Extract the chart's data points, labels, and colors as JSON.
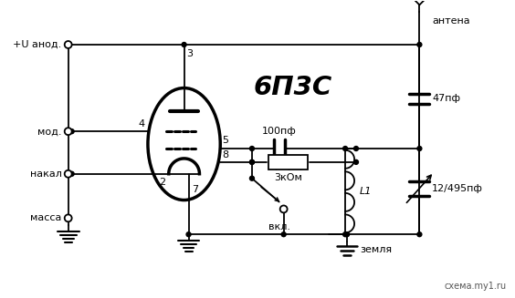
{
  "bg_color": "#ffffff",
  "line_color": "#000000",
  "title_text": "6П3С",
  "labels": {
    "u_anod": "+U анод.",
    "mod": "мод.",
    "nakal": "накал",
    "massa": "масса",
    "antenna": "антена",
    "cap47": "47пф",
    "cap100": "100пф",
    "res3k": "3кОм",
    "vkl": "вкл.",
    "L1": "L1",
    "cap12": "12/495пф",
    "zemlya": "земля",
    "watermark": "схема.my1.ru"
  }
}
